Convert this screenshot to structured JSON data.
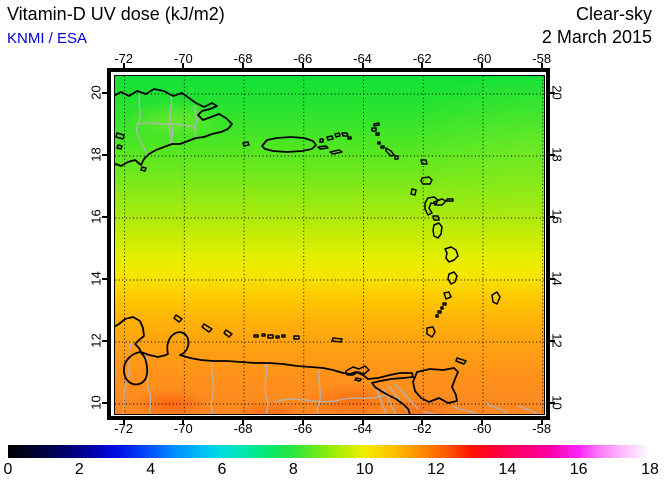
{
  "header": {
    "title": "Vitamin-D UV dose (kJ/m2)",
    "credit": "KNMI / ESA",
    "condition": "Clear-sky",
    "date": "2 March 2015"
  },
  "axes": {
    "lon_labels": [
      "-72",
      "-70",
      "-68",
      "-66",
      "-64",
      "-62",
      "-60",
      "-58"
    ],
    "lat_labels": [
      "20",
      "18",
      "16",
      "14",
      "12",
      "10"
    ]
  },
  "colorbar": {
    "labels": [
      "0",
      "2",
      "4",
      "6",
      "8",
      "10",
      "12",
      "14",
      "16",
      "18"
    ],
    "min": 0,
    "max": 18,
    "stops": [
      [
        0,
        "#000000"
      ],
      [
        1,
        "#00003f"
      ],
      [
        2,
        "#000089"
      ],
      [
        3,
        "#0008e0"
      ],
      [
        4,
        "#0053ff"
      ],
      [
        4.7,
        "#0090ff"
      ],
      [
        5.5,
        "#00c4f4"
      ],
      [
        6,
        "#00ddde"
      ],
      [
        6.7,
        "#00e7a8"
      ],
      [
        7.4,
        "#09e765"
      ],
      [
        8,
        "#2ce63e"
      ],
      [
        9,
        "#8fec0a"
      ],
      [
        10,
        "#f2ee00"
      ],
      [
        10.8,
        "#ffc000"
      ],
      [
        11.6,
        "#ff8c00"
      ],
      [
        12.4,
        "#ff4e00"
      ],
      [
        13,
        "#ff1400"
      ],
      [
        13.6,
        "#ff0034"
      ],
      [
        14.3,
        "#ff0068"
      ],
      [
        15.2,
        "#fb00a6"
      ],
      [
        16,
        "#f925f9"
      ],
      [
        16.6,
        "#fb7dfb"
      ],
      [
        17.3,
        "#fec2fe"
      ],
      [
        18,
        "#ffffff"
      ]
    ]
  },
  "map_field": {
    "vertical_stops": [
      [
        0,
        "#11e138"
      ],
      [
        0.1,
        "#2ae32e"
      ],
      [
        0.2,
        "#4ce625"
      ],
      [
        0.3,
        "#75e81a"
      ],
      [
        0.4,
        "#a3ea0e"
      ],
      [
        0.48,
        "#c9ec04"
      ],
      [
        0.54,
        "#e5ee00"
      ],
      [
        0.585,
        "#f4e700"
      ],
      [
        0.63,
        "#fbd400"
      ],
      [
        0.68,
        "#ffc103"
      ],
      [
        0.73,
        "#ffb00a"
      ],
      [
        0.8,
        "#ffa112"
      ],
      [
        0.88,
        "#ff9319"
      ],
      [
        1,
        "#fb8722"
      ]
    ],
    "hot_spot_color": "#ff3c00",
    "light_spot_color": "#c6f328"
  },
  "chart_data": {
    "type": "heatmap",
    "title": "Vitamin-D UV dose (kJ/m2)",
    "subtitle": "KNMI / ESA",
    "annotations": [
      "Clear-sky",
      "2 March 2015"
    ],
    "region": "Caribbean: Hispaniola, Puerto Rico, Lesser Antilles, Trinidad, Venezuelan coast",
    "lon_range": [
      -72.3,
      -57.9
    ],
    "lat_range": [
      9.7,
      20.6
    ],
    "grid_interval_deg": 2,
    "colorbar_range": [
      0,
      18
    ],
    "colorbar_ticks": [
      0,
      2,
      4,
      6,
      8,
      10,
      12,
      14,
      16,
      18
    ],
    "field_summary": [
      {
        "lat": 20,
        "approx_value_kJm2": 7.8
      },
      {
        "lat": 18,
        "approx_value_kJm2": 8.3
      },
      {
        "lat": 16,
        "approx_value_kJm2": 9.0
      },
      {
        "lat": 14,
        "approx_value_kJm2": 10.0
      },
      {
        "lat": 12,
        "approx_value_kJm2": 10.8
      },
      {
        "lat": 10,
        "approx_value_kJm2": 11.3
      }
    ]
  }
}
